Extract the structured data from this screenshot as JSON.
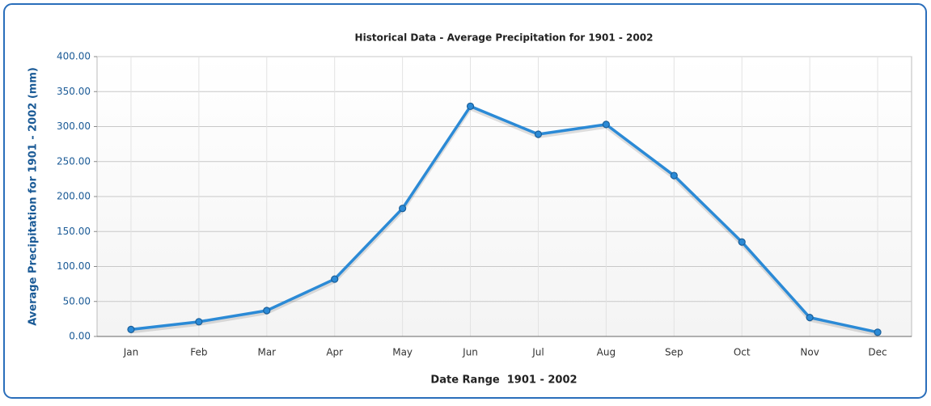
{
  "chart_data": {
    "type": "line",
    "title": "Historical Data - Average Precipitation for 1901 - 2002",
    "x_label": "Date Range  1901 - 2002",
    "y_label": "Average Precipitation for 1901 - 2002 (mm)",
    "categories": [
      "Jan",
      "Feb",
      "Mar",
      "Apr",
      "May",
      "Jun",
      "Jul",
      "Aug",
      "Sep",
      "Oct",
      "Nov",
      "Dec"
    ],
    "values": [
      10,
      21,
      37,
      82,
      183,
      329,
      289,
      303,
      230,
      135,
      27,
      6
    ],
    "color": "#2b8ad6",
    "ylim": [
      0,
      400
    ],
    "yticks": [
      {
        "value": 0,
        "label": "0.00"
      },
      {
        "value": 50,
        "label": "50.00"
      },
      {
        "value": 100,
        "label": "100.00"
      },
      {
        "value": 150,
        "label": "150.00"
      },
      {
        "value": 200,
        "label": "200.00"
      },
      {
        "value": 250,
        "label": "250.00"
      },
      {
        "value": 300,
        "label": "300.00"
      },
      {
        "value": 350,
        "label": "350.00"
      },
      {
        "value": 400,
        "label": "400.00"
      }
    ],
    "grid": true
  }
}
